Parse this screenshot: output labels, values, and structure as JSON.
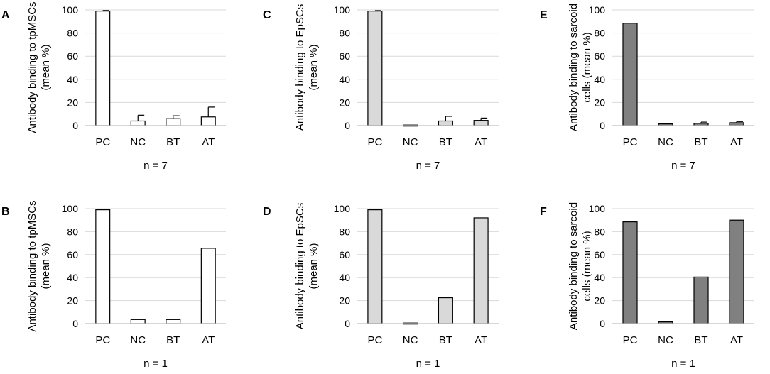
{
  "chart_data": [
    {
      "panel": "A",
      "type": "bar",
      "title": "",
      "ylabel_lines": [
        "Antibody binding to tpMSCs",
        "(mean %)"
      ],
      "categories": [
        "PC",
        "NC",
        "BT",
        "AT"
      ],
      "values": [
        99,
        4,
        6,
        7.5
      ],
      "error_upper": [
        0.5,
        5,
        2.5,
        8.5
      ],
      "ylim": [
        0,
        100
      ],
      "yticks": [
        0,
        20,
        40,
        60,
        80,
        100
      ],
      "grid": true,
      "fill": "#ffffff",
      "footnote": "n = 7"
    },
    {
      "panel": "B",
      "type": "bar",
      "title": "",
      "ylabel_lines": [
        "Antibody binding to tpMSCs",
        "(mean %)"
      ],
      "categories": [
        "PC",
        "NC",
        "BT",
        "AT"
      ],
      "values": [
        99,
        3.5,
        3.5,
        65.5
      ],
      "error_upper": [
        0,
        0,
        0,
        0
      ],
      "ylim": [
        0,
        100
      ],
      "yticks": [
        0,
        20,
        40,
        60,
        80,
        100
      ],
      "grid": true,
      "fill": "#ffffff",
      "footnote": "n = 1"
    },
    {
      "panel": "C",
      "type": "bar",
      "title": "",
      "ylabel_lines": [
        "Antibody binding to EpSCs",
        "(mean %)"
      ],
      "categories": [
        "PC",
        "NC",
        "BT",
        "AT"
      ],
      "values": [
        99,
        0.5,
        4,
        4.5
      ],
      "error_upper": [
        0.4,
        0,
        4,
        2
      ],
      "ylim": [
        0,
        100
      ],
      "yticks": [
        0,
        20,
        40,
        60,
        80,
        100
      ],
      "grid": true,
      "fill": "#d9d9d9",
      "footnote": "n = 7"
    },
    {
      "panel": "D",
      "type": "bar",
      "title": "",
      "ylabel_lines": [
        "Antibody binding to EpSCs",
        "(mean %)"
      ],
      "categories": [
        "PC",
        "NC",
        "BT",
        "AT"
      ],
      "values": [
        99,
        0.5,
        22.5,
        92
      ],
      "error_upper": [
        0,
        0,
        0,
        0
      ],
      "ylim": [
        0,
        100
      ],
      "yticks": [
        0,
        20,
        40,
        60,
        80,
        100
      ],
      "grid": true,
      "fill": "#d9d9d9",
      "footnote": "n = 1"
    },
    {
      "panel": "E",
      "type": "bar",
      "title": "",
      "ylabel_lines": [
        "Antibody binding  to sarcoid",
        "cells (mean %)"
      ],
      "categories": [
        "PC",
        "NC",
        "BT",
        "AT"
      ],
      "values": [
        88.5,
        1.5,
        2,
        2.5
      ],
      "error_upper": [
        0,
        0,
        1,
        1
      ],
      "ylim": [
        0,
        100
      ],
      "yticks": [
        0,
        20,
        40,
        60,
        80,
        100
      ],
      "grid": true,
      "fill": "#808080",
      "footnote": "n = 7"
    },
    {
      "panel": "F",
      "type": "bar",
      "title": "",
      "ylabel_lines": [
        "Antibody binding  to sarcoid",
        "cells (mean %)"
      ],
      "categories": [
        "PC",
        "NC",
        "BT",
        "AT"
      ],
      "values": [
        88.5,
        1.5,
        40.5,
        90
      ],
      "error_upper": [
        0,
        0,
        0,
        0
      ],
      "ylim": [
        0,
        100
      ],
      "yticks": [
        0,
        20,
        40,
        60,
        80,
        100
      ],
      "grid": true,
      "fill": "#808080",
      "footnote": "n = 1"
    }
  ],
  "colors": {
    "grid": "#d9d9d9",
    "axis": "#bfbfbf",
    "bar_stroke": "#000000",
    "text": "#000000"
  }
}
